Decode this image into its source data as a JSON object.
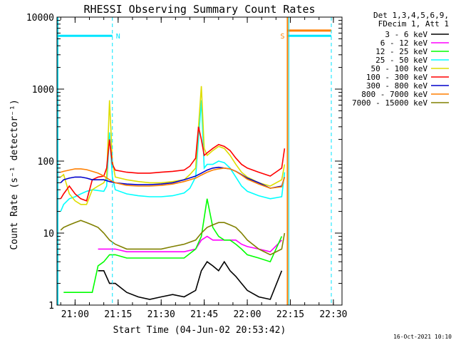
{
  "chart_data": {
    "type": "line",
    "title": "RHESSI Observing Summary Count Rates",
    "xlabel": "Start Time (04-Jun-02 20:53:42)",
    "ylabel": "Count Rate (s⁻¹ detector⁻¹)",
    "y_scale": "log",
    "ylim": [
      1,
      10000
    ],
    "xlim": [
      "20:53:42",
      "22:33:00"
    ],
    "x_ticks": [
      "21:00",
      "21:15",
      "21:30",
      "21:45",
      "22:00",
      "22:15",
      "22:30"
    ],
    "y_ticks": [
      "1",
      "10",
      "100",
      "1000",
      "10000"
    ],
    "grid": false,
    "legend_position": "right",
    "legend_header": [
      "Det 1,3,4,5,6,9,",
      "FDecim 1, Att 1"
    ],
    "colors": {
      "axes": "#000000",
      "markers": "#00e5ff",
      "spacecraft_night": "#00e5ff",
      "saa": "#ff7f00"
    },
    "series": [
      {
        "name": "3 - 6 keV",
        "color": "#000000",
        "x": [
          "21:08",
          "21:10",
          "21:12",
          "21:14",
          "21:18",
          "21:22",
          "21:26",
          "21:30",
          "21:34",
          "21:38",
          "21:42",
          "21:44",
          "21:46",
          "21:48",
          "21:50",
          "21:52",
          "21:54",
          "21:56",
          "21:58",
          "22:00",
          "22:04",
          "22:08",
          "22:12"
        ],
        "values": [
          3,
          3,
          2,
          2,
          1.5,
          1.3,
          1.2,
          1.3,
          1.4,
          1.3,
          1.6,
          3,
          4,
          3.5,
          3,
          4,
          3,
          2.5,
          2,
          1.6,
          1.3,
          1.2,
          3
        ]
      },
      {
        "name": "6 - 12 keV",
        "color": "#ff00ff",
        "x": [
          "21:08",
          "21:10",
          "21:12",
          "21:14",
          "21:18",
          "21:22",
          "21:26",
          "21:30",
          "21:34",
          "21:38",
          "21:42",
          "21:44",
          "21:46",
          "21:48",
          "21:50",
          "21:52",
          "21:54",
          "21:56",
          "21:58",
          "22:00",
          "22:04",
          "22:08",
          "22:12"
        ],
        "values": [
          6,
          6,
          6,
          6,
          5.5,
          5.5,
          5.5,
          5.5,
          5.5,
          5.5,
          6,
          8,
          9,
          8,
          8,
          8,
          8,
          8,
          7,
          6.5,
          6,
          5.5,
          8
        ]
      },
      {
        "name": "12 - 25 keV",
        "color": "#00ff00",
        "x": [
          "20:56",
          "20:58",
          "21:00",
          "21:02",
          "21:04",
          "21:06",
          "21:08",
          "21:10",
          "21:12",
          "21:14",
          "21:18",
          "21:22",
          "21:26",
          "21:30",
          "21:34",
          "21:38",
          "21:42",
          "21:44",
          "21:46",
          "21:48",
          "21:50",
          "21:52",
          "21:54",
          "21:56",
          "21:58",
          "22:00",
          "22:04",
          "22:08",
          "22:12"
        ],
        "values": [
          1.5,
          1.5,
          1.5,
          1.5,
          1.5,
          1.5,
          3.5,
          4,
          5,
          5,
          4.5,
          4.5,
          4.5,
          4.5,
          4.5,
          4.5,
          6,
          9,
          30,
          12,
          9,
          8,
          8,
          7,
          6,
          5,
          4.5,
          4,
          9
        ]
      },
      {
        "name": "25 - 50 keV",
        "color": "#00ffff",
        "x": [
          "20:55",
          "20:56",
          "20:58",
          "21:00",
          "21:02",
          "21:04",
          "21:06",
          "21:08",
          "21:10",
          "21:11",
          "21:12",
          "21:13",
          "21:14",
          "21:18",
          "21:22",
          "21:26",
          "21:30",
          "21:34",
          "21:38",
          "21:40",
          "21:42",
          "21:43",
          "21:44",
          "21:45",
          "21:46",
          "21:48",
          "21:50",
          "21:52",
          "21:54",
          "21:56",
          "21:58",
          "22:00",
          "22:04",
          "22:08",
          "22:12",
          "22:13"
        ],
        "values": [
          20,
          25,
          30,
          32,
          35,
          38,
          40,
          39,
          38,
          45,
          250,
          60,
          40,
          35,
          33,
          32,
          32,
          33,
          36,
          42,
          60,
          200,
          700,
          80,
          90,
          90,
          100,
          95,
          80,
          60,
          45,
          38,
          33,
          30,
          32,
          70
        ]
      },
      {
        "name": "50 - 100 keV",
        "color": "#dddd00",
        "x": [
          "20:55",
          "20:56",
          "20:58",
          "21:00",
          "21:02",
          "21:04",
          "21:06",
          "21:08",
          "21:10",
          "21:11",
          "21:12",
          "21:13",
          "21:14",
          "21:18",
          "21:22",
          "21:26",
          "21:30",
          "21:34",
          "21:38",
          "21:40",
          "21:42",
          "21:43",
          "21:44",
          "21:45",
          "21:46",
          "21:48",
          "21:50",
          "21:52",
          "21:54",
          "21:56",
          "21:58",
          "22:00",
          "22:04",
          "22:08",
          "22:12",
          "22:13"
        ],
        "values": [
          60,
          65,
          35,
          28,
          25,
          25,
          40,
          45,
          50,
          60,
          700,
          100,
          60,
          55,
          52,
          50,
          50,
          52,
          55,
          65,
          80,
          300,
          1100,
          150,
          120,
          140,
          160,
          150,
          120,
          90,
          70,
          60,
          50,
          45,
          55,
          90
        ]
      },
      {
        "name": "100 - 300 keV",
        "color": "#ff0000",
        "x": [
          "20:55",
          "20:56",
          "20:58",
          "21:00",
          "21:02",
          "21:04",
          "21:06",
          "21:08",
          "21:10",
          "21:11",
          "21:12",
          "21:13",
          "21:14",
          "21:18",
          "21:22",
          "21:26",
          "21:30",
          "21:34",
          "21:38",
          "21:40",
          "21:42",
          "21:43",
          "21:44",
          "21:45",
          "21:46",
          "21:48",
          "21:50",
          "21:52",
          "21:54",
          "21:56",
          "21:58",
          "22:00",
          "22:04",
          "22:08",
          "22:12",
          "22:13"
        ],
        "values": [
          30,
          35,
          45,
          35,
          30,
          28,
          55,
          60,
          62,
          80,
          200,
          90,
          75,
          70,
          68,
          68,
          70,
          72,
          75,
          85,
          110,
          300,
          200,
          120,
          130,
          150,
          170,
          160,
          140,
          110,
          90,
          80,
          70,
          62,
          80,
          150
        ]
      },
      {
        "name": "300 - 800 keV",
        "color": "#0000cc",
        "x": [
          "20:55",
          "20:56",
          "20:58",
          "21:00",
          "21:02",
          "21:04",
          "21:06",
          "21:08",
          "21:10",
          "21:12",
          "21:14",
          "21:18",
          "21:22",
          "21:26",
          "21:30",
          "21:34",
          "21:38",
          "21:42",
          "21:44",
          "21:46",
          "21:48",
          "21:50",
          "21:52",
          "21:54",
          "21:56",
          "21:58",
          "22:00",
          "22:04",
          "22:08",
          "22:12",
          "22:13"
        ],
        "values": [
          50,
          55,
          58,
          60,
          60,
          58,
          55,
          55,
          55,
          52,
          50,
          48,
          47,
          47,
          48,
          50,
          55,
          62,
          68,
          75,
          80,
          82,
          80,
          78,
          72,
          65,
          58,
          50,
          42,
          45,
          60
        ]
      },
      {
        "name": "800 - 7000 keV",
        "color": "#ff7f00",
        "x": [
          "20:55",
          "20:56",
          "20:58",
          "21:00",
          "21:02",
          "21:04",
          "21:06",
          "21:08",
          "21:10",
          "21:12",
          "21:14",
          "21:18",
          "21:22",
          "21:26",
          "21:30",
          "21:34",
          "21:38",
          "21:42",
          "21:44",
          "21:46",
          "21:48",
          "21:50",
          "21:52",
          "21:54",
          "21:56",
          "21:58",
          "22:00",
          "22:04",
          "22:08",
          "22:12",
          "22:13"
        ],
        "values": [
          70,
          72,
          75,
          78,
          78,
          76,
          72,
          68,
          62,
          55,
          50,
          46,
          45,
          45,
          46,
          48,
          52,
          58,
          64,
          70,
          75,
          78,
          80,
          78,
          72,
          64,
          56,
          48,
          42,
          44,
          60
        ]
      },
      {
        "name": "7000 - 15000 keV",
        "color": "#808000",
        "x": [
          "20:55",
          "20:56",
          "20:58",
          "21:00",
          "21:02",
          "21:04",
          "21:06",
          "21:08",
          "21:10",
          "21:12",
          "21:14",
          "21:18",
          "21:22",
          "21:26",
          "21:30",
          "21:34",
          "21:38",
          "21:42",
          "21:44",
          "21:46",
          "21:48",
          "21:50",
          "21:52",
          "21:54",
          "21:56",
          "21:58",
          "22:00",
          "22:04",
          "22:08",
          "22:12",
          "22:13"
        ],
        "values": [
          11,
          12,
          13,
          14,
          15,
          14,
          13,
          12,
          10,
          8,
          7,
          6,
          6,
          6,
          6,
          6.5,
          7,
          8,
          10,
          12,
          13,
          14,
          14,
          13,
          12,
          10,
          8,
          6,
          5,
          6,
          10
        ]
      }
    ],
    "annotations": [
      {
        "label": "N",
        "time": "21:13",
        "color": "#00e5ff"
      },
      {
        "label": "S",
        "time": "22:14",
        "color": "#ff7f00"
      }
    ]
  },
  "footer": {
    "timestamp": "16-Oct-2021 10:10"
  }
}
